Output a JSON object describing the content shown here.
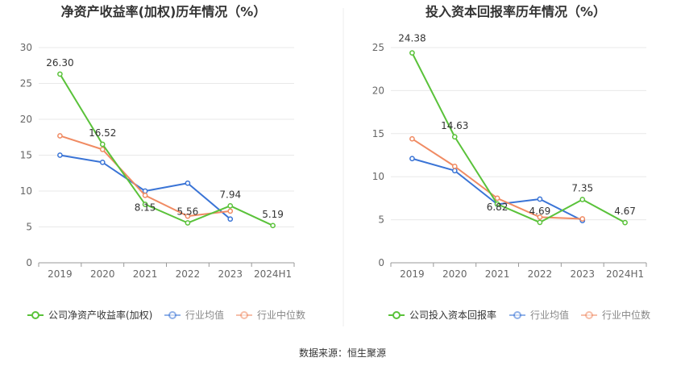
{
  "colors": {
    "company": "#5ac23a",
    "industry_avg": "#3a74d6",
    "industry_median": "#f08b63",
    "grid": "#e8e8e8",
    "axis": "#666666",
    "title": "#333333",
    "label": "#333333",
    "divider": "#eeeeee"
  },
  "source": "数据来源：恒生聚源",
  "chart_data": [
    {
      "type": "line",
      "title": "净资产收益率(加权)历年情况（%）",
      "categories": [
        "2019",
        "2020",
        "2021",
        "2022",
        "2023",
        "2024H1"
      ],
      "ylim": [
        0,
        30
      ],
      "yticks": [
        "0",
        "5",
        "10",
        "15",
        "20",
        "25",
        "30"
      ],
      "grid": true,
      "legend_position": "bottom",
      "series": [
        {
          "key": "company",
          "name": "公司净资产收益率(加权)",
          "values": [
            26.3,
            16.52,
            8.15,
            5.56,
            7.94,
            5.19
          ],
          "labels": [
            "26.30",
            "16.52",
            "8.15",
            "5.56",
            "7.94",
            "5.19"
          ]
        },
        {
          "key": "industry_avg",
          "name": "行业均值",
          "values": [
            15.0,
            14.0,
            10.0,
            11.1,
            6.1,
            null
          ]
        },
        {
          "key": "industry_median",
          "name": "行业中位数",
          "values": [
            17.7,
            15.8,
            9.4,
            6.5,
            7.2,
            null
          ]
        }
      ]
    },
    {
      "type": "line",
      "title": "投入资本回报率历年情况（%）",
      "categories": [
        "2019",
        "2020",
        "2021",
        "2022",
        "2023",
        "2024H1"
      ],
      "ylim": [
        0,
        25
      ],
      "yticks": [
        "0",
        "5",
        "10",
        "15",
        "20",
        "25"
      ],
      "grid": true,
      "legend_position": "bottom",
      "series": [
        {
          "key": "company",
          "name": "公司投入资本回报率",
          "values": [
            24.38,
            14.63,
            6.82,
            4.69,
            7.35,
            4.67
          ],
          "labels": [
            "24.38",
            "14.63",
            "6.82",
            "4.69",
            "7.35",
            "4.67"
          ]
        },
        {
          "key": "industry_avg",
          "name": "行业均值",
          "values": [
            12.1,
            10.7,
            6.8,
            7.4,
            4.9,
            null
          ]
        },
        {
          "key": "industry_median",
          "name": "行业中位数",
          "values": [
            14.4,
            11.2,
            7.5,
            5.3,
            5.1,
            null
          ]
        }
      ]
    }
  ]
}
